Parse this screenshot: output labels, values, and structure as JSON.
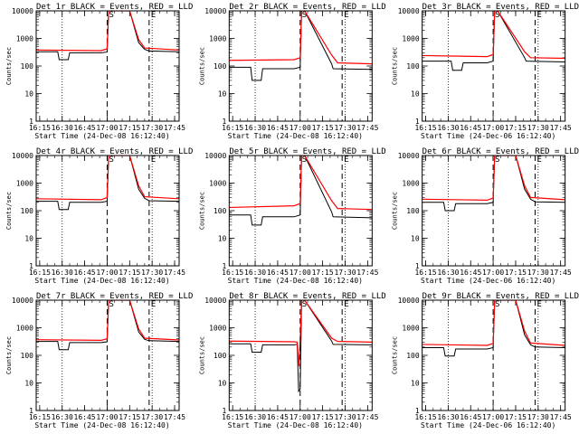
{
  "chart_data": [
    {
      "type": "line",
      "title": "Det 1r BLACK = Events, RED = LLD",
      "xlabel": "Start Time (24-Dec-08 16:12:40)",
      "ylabel": "Counts/sec",
      "x_ticks": [
        "16:15",
        "16:30",
        "16:45",
        "17:00",
        "17:15",
        "17:30",
        "17:45"
      ],
      "y_ticks": [
        "1",
        "10",
        "100",
        "1000",
        "10000"
      ],
      "ylim": [
        1,
        10000
      ],
      "y_scale": "log",
      "markers": [
        {
          "label": "S",
          "time": "17:00"
        },
        {
          "label": "E",
          "time": "17:28"
        }
      ],
      "series": [
        {
          "color": "#000000",
          "x": [
            "16:12",
            "16:27",
            "16:28",
            "16:34",
            "16:35",
            "16:56",
            "17:00",
            "17:01",
            "17:15",
            "17:21",
            "17:25",
            "17:28",
            "17:48"
          ],
          "y": [
            330,
            330,
            170,
            170,
            300,
            300,
            320,
            10000,
            10000,
            700,
            400,
            350,
            330
          ]
        },
        {
          "color": "#ff0000",
          "x": [
            "16:12",
            "16:56",
            "17:00",
            "17:01",
            "17:15",
            "17:21",
            "17:25",
            "17:48"
          ],
          "y": [
            380,
            360,
            420,
            10000,
            10000,
            900,
            450,
            380
          ]
        }
      ]
    },
    {
      "type": "line",
      "title": "Det 2r BLACK = Events, RED = LLD",
      "xlabel": "Start Time (24-Dec-08 16:12:40)",
      "ylabel": "Counts/sec",
      "x_ticks": [
        "16:15",
        "16:30",
        "16:45",
        "17:00",
        "17:15",
        "17:30",
        "17:45"
      ],
      "y_ticks": [
        "1",
        "10",
        "100",
        "1000",
        "10000"
      ],
      "ylim": [
        1,
        10000
      ],
      "y_scale": "log",
      "markers": [
        {
          "label": "S",
          "time": "17:00"
        },
        {
          "label": "E",
          "time": "17:28"
        }
      ],
      "series": [
        {
          "color": "#000000",
          "x": [
            "16:12",
            "16:27",
            "16:28",
            "16:34",
            "16:35",
            "16:56",
            "17:00",
            "17:01",
            "17:03",
            "17:21",
            "17:22",
            "17:48"
          ],
          "y": [
            90,
            90,
            30,
            30,
            80,
            80,
            90,
            10000,
            10000,
            120,
            80,
            75
          ]
        },
        {
          "color": "#ff0000",
          "x": [
            "16:12",
            "16:56",
            "17:00",
            "17:01",
            "17:03",
            "17:21",
            "17:25",
            "17:48"
          ],
          "y": [
            160,
            170,
            200,
            10000,
            10000,
            250,
            130,
            120
          ]
        }
      ]
    },
    {
      "type": "line",
      "title": "Det 3r BLACK = Events, RED = LLD",
      "xlabel": "Start Time (24-Dec-06 16:12:40)",
      "ylabel": "Counts/sec",
      "x_ticks": [
        "16:15",
        "16:30",
        "16:45",
        "17:00",
        "17:15",
        "17:30",
        "17:45"
      ],
      "y_ticks": [
        "1",
        "10",
        "100",
        "1000",
        "10000"
      ],
      "ylim": [
        1,
        10000
      ],
      "y_scale": "log",
      "markers": [
        {
          "label": "S",
          "time": "17:00"
        },
        {
          "label": "E",
          "time": "17:28"
        }
      ],
      "series": [
        {
          "color": "#000000",
          "x": [
            "16:12",
            "16:32",
            "16:33",
            "16:39",
            "16:40",
            "16:56",
            "17:00",
            "17:01",
            "17:03",
            "17:21",
            "17:22",
            "17:48"
          ],
          "y": [
            150,
            150,
            70,
            70,
            130,
            130,
            150,
            10000,
            10000,
            200,
            150,
            140
          ]
        },
        {
          "color": "#ff0000",
          "x": [
            "16:12",
            "16:56",
            "17:00",
            "17:01",
            "17:03",
            "17:21",
            "17:25",
            "17:48"
          ],
          "y": [
            240,
            220,
            260,
            10000,
            10000,
            330,
            200,
            190
          ]
        }
      ]
    },
    {
      "type": "line",
      "title": "Det 4r BLACK = Events, RED = LLD",
      "xlabel": "Start Time (24-Dec-08 16:12:40)",
      "ylabel": "Counts/sec",
      "x_ticks": [
        "16:15",
        "16:30",
        "16:45",
        "17:00",
        "17:15",
        "17:30",
        "17:45"
      ],
      "y_ticks": [
        "1",
        "10",
        "100",
        "1000",
        "10000"
      ],
      "ylim": [
        1,
        10000
      ],
      "y_scale": "log",
      "markers": [
        {
          "label": "S",
          "time": "17:00"
        },
        {
          "label": "E",
          "time": "17:28"
        }
      ],
      "series": [
        {
          "color": "#000000",
          "x": [
            "16:12",
            "16:27",
            "16:28",
            "16:34",
            "16:35",
            "16:56",
            "17:00",
            "17:01",
            "17:15",
            "17:21",
            "17:25",
            "17:28",
            "17:48"
          ],
          "y": [
            220,
            220,
            110,
            110,
            200,
            200,
            220,
            10000,
            10000,
            600,
            280,
            230,
            220
          ]
        },
        {
          "color": "#ff0000",
          "x": [
            "16:12",
            "16:56",
            "17:00",
            "17:01",
            "17:15",
            "17:21",
            "17:25",
            "17:48"
          ],
          "y": [
            270,
            250,
            300,
            10000,
            10000,
            800,
            320,
            270
          ]
        }
      ]
    },
    {
      "type": "line",
      "title": "Det 5r BLACK = Events, RED = LLD",
      "xlabel": "Start Time (24-Dec-08 16:12:40)",
      "ylabel": "Counts/sec",
      "x_ticks": [
        "16:15",
        "16:30",
        "16:45",
        "17:00",
        "17:15",
        "17:30",
        "17:45"
      ],
      "y_ticks": [
        "1",
        "10",
        "100",
        "1000",
        "10000"
      ],
      "ylim": [
        1,
        10000
      ],
      "y_scale": "log",
      "markers": [
        {
          "label": "S",
          "time": "17:00"
        },
        {
          "label": "E",
          "time": "17:28"
        }
      ],
      "series": [
        {
          "color": "#000000",
          "x": [
            "16:12",
            "16:27",
            "16:28",
            "16:34",
            "16:35",
            "16:56",
            "17:00",
            "17:01",
            "17:03",
            "17:21",
            "17:22",
            "17:48"
          ],
          "y": [
            70,
            70,
            30,
            30,
            60,
            60,
            70,
            10000,
            10000,
            90,
            60,
            55
          ]
        },
        {
          "color": "#ff0000",
          "x": [
            "16:12",
            "16:56",
            "17:00",
            "17:01",
            "17:03",
            "17:21",
            "17:25",
            "17:48"
          ],
          "y": [
            130,
            150,
            180,
            10000,
            10000,
            230,
            120,
            110
          ]
        }
      ]
    },
    {
      "type": "line",
      "title": "Det 6r BLACK = Events, RED = LLD",
      "xlabel": "Start Time (24-Dec-06 16:12:40)",
      "ylabel": "Counts/sec",
      "x_ticks": [
        "16:15",
        "16:30",
        "16:45",
        "17:00",
        "17:15",
        "17:30",
        "17:45"
      ],
      "y_ticks": [
        "1",
        "10",
        "100",
        "1000",
        "10000"
      ],
      "ylim": [
        1,
        10000
      ],
      "y_scale": "log",
      "markers": [
        {
          "label": "S",
          "time": "17:00"
        },
        {
          "label": "E",
          "time": "17:28"
        }
      ],
      "series": [
        {
          "color": "#000000",
          "x": [
            "16:12",
            "16:27",
            "16:28",
            "16:34",
            "16:35",
            "16:56",
            "17:00",
            "17:01",
            "17:15",
            "17:21",
            "17:25",
            "17:28",
            "17:48"
          ],
          "y": [
            200,
            200,
            100,
            100,
            180,
            180,
            200,
            10000,
            10000,
            600,
            260,
            210,
            200
          ]
        },
        {
          "color": "#ff0000",
          "x": [
            "16:12",
            "16:56",
            "17:00",
            "17:01",
            "17:15",
            "17:21",
            "17:25",
            "17:48"
          ],
          "y": [
            260,
            240,
            290,
            10000,
            10000,
            800,
            300,
            250
          ]
        }
      ]
    },
    {
      "type": "line",
      "title": "Det 7r BLACK = Events, RED = LLD",
      "xlabel": "Start Time (24-Dec-08 16:12:40)",
      "ylabel": "Counts/sec",
      "x_ticks": [
        "16:15",
        "16:30",
        "16:45",
        "17:00",
        "17:15",
        "17:30",
        "17:45"
      ],
      "y_ticks": [
        "1",
        "10",
        "100",
        "1000",
        "10000"
      ],
      "ylim": [
        1,
        10000
      ],
      "y_scale": "log",
      "markers": [
        {
          "label": "S",
          "time": "17:00"
        },
        {
          "label": "E",
          "time": "17:28"
        }
      ],
      "series": [
        {
          "color": "#000000",
          "x": [
            "16:12",
            "16:27",
            "16:28",
            "16:34",
            "16:35",
            "16:56",
            "17:00",
            "17:01",
            "17:15",
            "17:21",
            "17:25",
            "17:28",
            "17:48"
          ],
          "y": [
            320,
            320,
            160,
            160,
            290,
            290,
            310,
            10000,
            10000,
            700,
            380,
            340,
            320
          ]
        },
        {
          "color": "#ff0000",
          "x": [
            "16:12",
            "16:56",
            "17:00",
            "17:01",
            "17:15",
            "17:21",
            "17:25",
            "17:48"
          ],
          "y": [
            370,
            350,
            400,
            10000,
            10000,
            900,
            420,
            360
          ]
        }
      ]
    },
    {
      "type": "line",
      "title": "Det 8r BLACK = Events, RED = LLD",
      "xlabel": "Start Time (24-Dec-08 16:12:40)",
      "ylabel": "Counts/sec",
      "x_ticks": [
        "16:15",
        "16:30",
        "16:45",
        "17:00",
        "17:15",
        "17:30",
        "17:45"
      ],
      "y_ticks": [
        "1",
        "10",
        "100",
        "1000",
        "10000"
      ],
      "ylim": [
        1,
        10000
      ],
      "y_scale": "log",
      "markers": [
        {
          "label": "S",
          "time": "17:00"
        },
        {
          "label": "E",
          "time": "17:28"
        }
      ],
      "series": [
        {
          "color": "#000000",
          "x": [
            "16:12",
            "16:27",
            "16:28",
            "16:34",
            "16:35",
            "16:56",
            "16:58",
            "16:59",
            "17:00",
            "17:01",
            "17:03",
            "17:21",
            "17:22",
            "17:48"
          ],
          "y": [
            260,
            260,
            130,
            130,
            240,
            240,
            250,
            5,
            6,
            10000,
            10000,
            330,
            250,
            240
          ]
        },
        {
          "color": "#ff0000",
          "x": [
            "16:12",
            "16:56",
            "16:58",
            "16:59",
            "17:00",
            "17:01",
            "17:03",
            "17:21",
            "17:25",
            "17:48"
          ],
          "y": [
            330,
            310,
            300,
            40,
            360,
            10000,
            10000,
            420,
            320,
            300
          ]
        }
      ]
    },
    {
      "type": "line",
      "title": "Det 9r BLACK = Events, RED = LLD",
      "xlabel": "Start Time (24-Dec-06 16:12:40)",
      "ylabel": "Counts/sec",
      "x_ticks": [
        "16:15",
        "16:30",
        "16:45",
        "17:00",
        "17:15",
        "17:30",
        "17:45"
      ],
      "y_ticks": [
        "1",
        "10",
        "100",
        "1000",
        "10000"
      ],
      "ylim": [
        1,
        10000
      ],
      "y_scale": "log",
      "markers": [
        {
          "label": "S",
          "time": "17:00"
        },
        {
          "label": "E",
          "time": "17:28"
        }
      ],
      "series": [
        {
          "color": "#000000",
          "x": [
            "16:12",
            "16:27",
            "16:28",
            "16:34",
            "16:35",
            "16:56",
            "17:00",
            "17:01",
            "17:15",
            "17:21",
            "17:25",
            "17:28",
            "17:48"
          ],
          "y": [
            190,
            190,
            95,
            95,
            170,
            170,
            190,
            10000,
            10000,
            550,
            240,
            200,
            190
          ]
        },
        {
          "color": "#ff0000",
          "x": [
            "16:12",
            "16:56",
            "17:00",
            "17:01",
            "17:15",
            "17:21",
            "17:25",
            "17:48"
          ],
          "y": [
            250,
            230,
            270,
            10000,
            10000,
            750,
            280,
            230
          ]
        }
      ]
    }
  ]
}
